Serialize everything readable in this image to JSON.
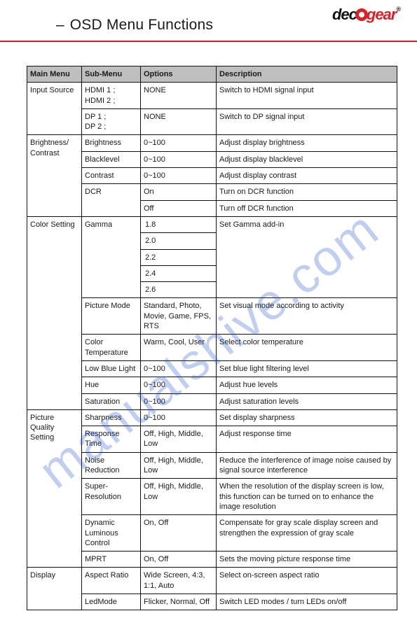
{
  "brand": {
    "left": "dec",
    "right": "gear",
    "reg": "®"
  },
  "page_title": "OSD Menu Functions",
  "watermark": "manualshive.com",
  "colors": {
    "accent": "#d91f27",
    "header_bg": "#bfbfbf",
    "text": "#1a1a1a",
    "border": "#111111"
  },
  "headers": {
    "main": "Main Menu",
    "sub": "Sub-Menu",
    "opt": "Options",
    "desc": "Description"
  },
  "groups": [
    {
      "main": "Input Source",
      "rows": [
        {
          "sub": "HDMI 1 ;\nHDMI 2 ;",
          "opt": "NONE",
          "desc": "Switch to HDMI signal input"
        },
        {
          "sub": "DP 1 ;\nDP 2 ;",
          "opt": "NONE",
          "desc": "Switch to DP signal input"
        }
      ]
    },
    {
      "main": "Brightness/\nContrast",
      "rows": [
        {
          "sub": "Brightness",
          "opt": "0~100",
          "desc": "Adjust display brightness"
        },
        {
          "sub": "Blacklevel",
          "opt": "0~100",
          "desc": "Adjust display blacklevel"
        },
        {
          "sub": "Contrast",
          "opt": "0~100",
          "desc": "Adjust display contrast"
        },
        {
          "sub": "DCR",
          "opt": "On",
          "desc": "Turn on DCR function",
          "sub_rowspan": 2
        },
        {
          "opt": "Off",
          "desc": "Turn off DCR function"
        }
      ]
    },
    {
      "main": "Color Setting",
      "rows": [
        {
          "sub": "Gamma",
          "opt_stack": [
            "1.8",
            "2.0",
            "2.2",
            "2.4",
            "2.6"
          ],
          "desc": "Set Gamma add-in"
        },
        {
          "sub": "Picture Mode",
          "opt": "Standard, Photo, Movie, Game, FPS, RTS",
          "desc": "Set visual mode according to activity"
        },
        {
          "sub": "Color Temperature",
          "opt": "Warm, Cool, User",
          "desc": "Select color temperature"
        },
        {
          "sub": "Low Blue Light",
          "opt": "0~100",
          "desc": "Set blue light filtering level"
        },
        {
          "sub": "Hue",
          "opt": "0~100",
          "desc": "Adjust hue levels"
        },
        {
          "sub": "Saturation",
          "opt": "0~100",
          "desc": "Adjust saturation levels"
        }
      ]
    },
    {
      "main": "Picture Quality Setting",
      "rows": [
        {
          "sub": "Sharpness",
          "opt": "0~100",
          "desc": "Set display sharpness"
        },
        {
          "sub": "Response Time",
          "opt": "Off, High, Middle, Low",
          "desc": "Adjust response time"
        },
        {
          "sub": "Noise Reduction",
          "opt": "Off, High, Middle, Low",
          "desc": "Reduce the interference of image noise caused by signal source interference"
        },
        {
          "sub": "Super-Resolution",
          "opt": "Off, High, Middle, Low",
          "desc": "When the resolution of the display screen is low, this function can be turned on to enhance the image resolution"
        },
        {
          "sub": "Dynamic Luminous Control",
          "opt": "On, Off",
          "desc": "Compensate for gray scale display screen and strengthen the expression of gray scale"
        },
        {
          "sub": "MPRT",
          "opt": "On, Off",
          "desc": "Sets the moving picture response time"
        }
      ]
    },
    {
      "main": "Display",
      "rows": [
        {
          "sub": "Aspect Ratio",
          "opt": "Wide Screen, 4:3, 1:1, Auto",
          "desc": "Select on-screen aspect ratio"
        },
        {
          "sub": "LedMode",
          "opt": "Flicker, Normal, Off",
          "desc": "Switch LED modes / turn LEDs on/off"
        }
      ]
    }
  ]
}
